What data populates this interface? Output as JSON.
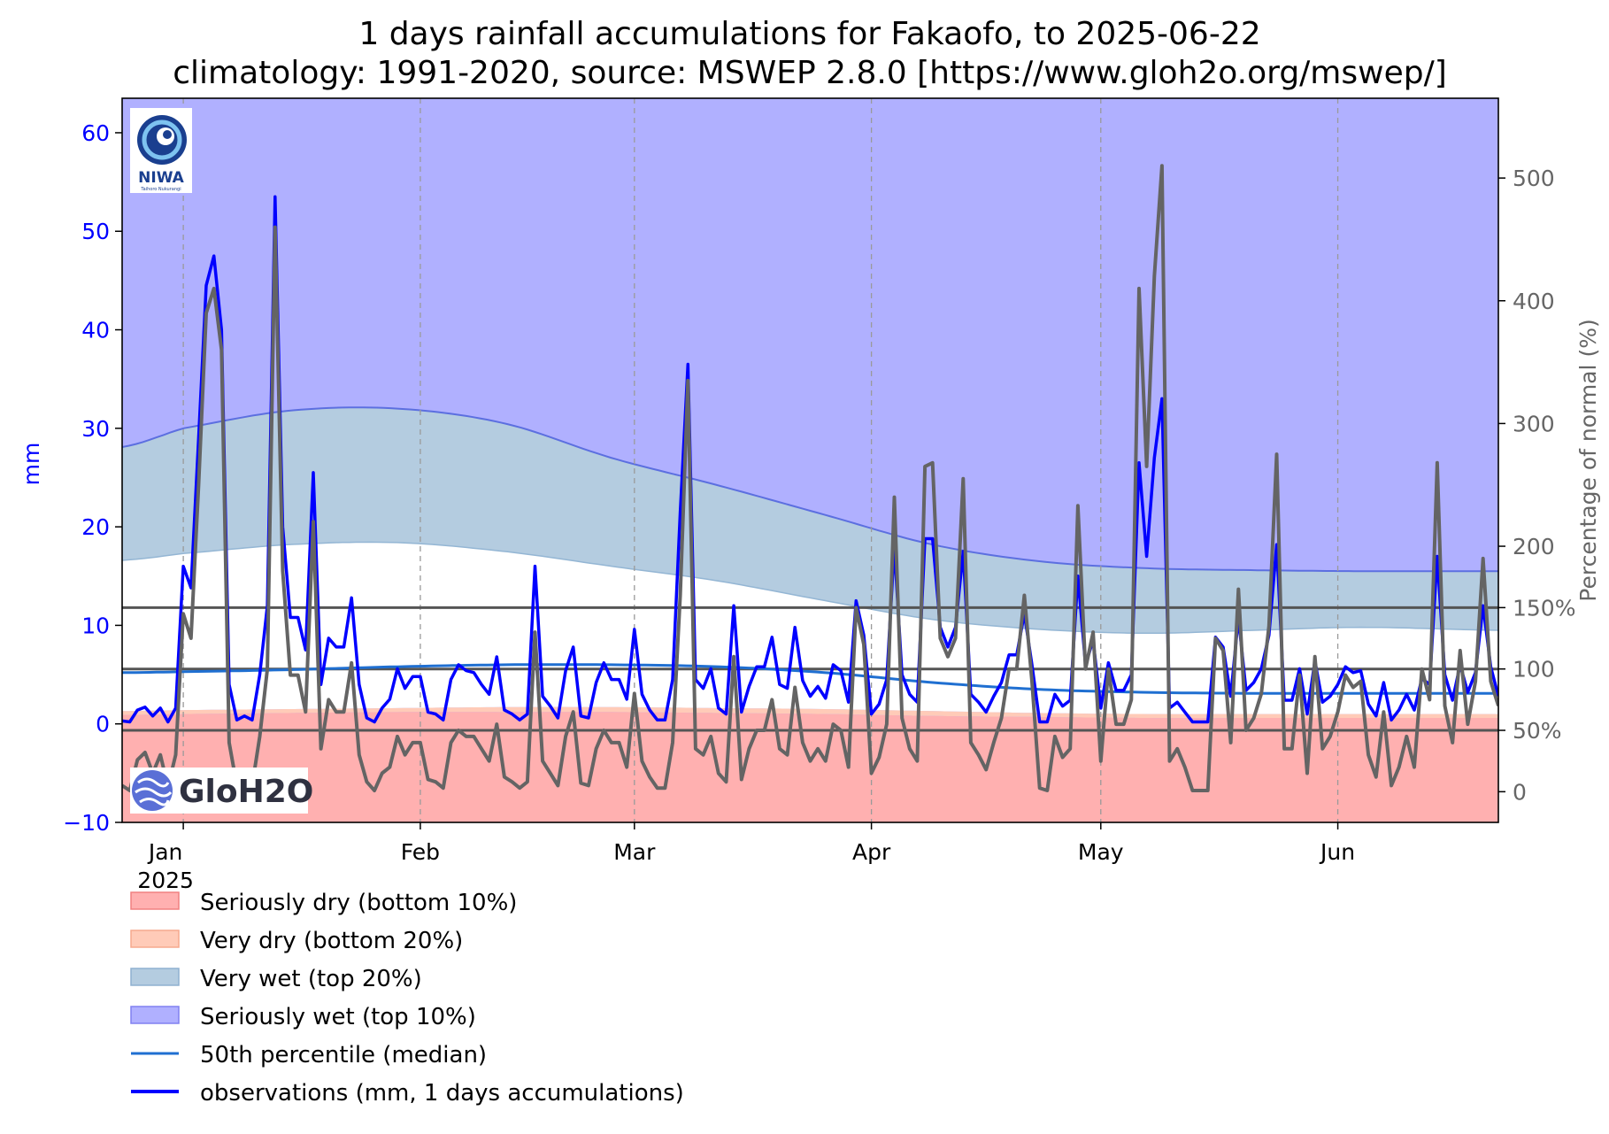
{
  "chart_data": {
    "type": "line",
    "title": "1 days rainfall accumulations for Fakaofo, to 2025-06-22",
    "subtitle": "climatology: 1991-2020, source: MSWEP 2.8.0 [https://www.gloh2o.org/mswep/]",
    "ylabel": "mm",
    "ylabel_right": "Percentage of normal (%)",
    "ylim": [
      -10,
      63.5
    ],
    "ylim_right": [
      -25,
      565
    ],
    "yticks": [
      -10,
      0,
      10,
      20,
      30,
      40,
      50,
      60
    ],
    "yticks_right": [
      0,
      100,
      200,
      300,
      400,
      500
    ],
    "yticks_right_labels": [
      "0",
      "100",
      "200",
      "300",
      "400",
      "500"
    ],
    "reference_lines_right": [
      {
        "value": 50,
        "label": "50%"
      },
      {
        "value": 100,
        "label": "100"
      },
      {
        "value": 150,
        "label": "150%"
      }
    ],
    "x_start": "2024-12-24",
    "x_end": "2025-06-22",
    "x_ticks": [
      {
        "date": "2025-01-01",
        "label": "Jan",
        "sublabel": "2025"
      },
      {
        "date": "2025-02-01",
        "label": "Feb",
        "sublabel": ""
      },
      {
        "date": "2025-03-01",
        "label": "Mar",
        "sublabel": ""
      },
      {
        "date": "2025-04-01",
        "label": "Apr",
        "sublabel": ""
      },
      {
        "date": "2025-05-01",
        "label": "May",
        "sublabel": ""
      },
      {
        "date": "2025-06-01",
        "label": "Jun",
        "sublabel": ""
      }
    ],
    "climatology": {
      "dates": [
        "2024-12-24",
        "2025-01-01",
        "2025-01-15",
        "2025-01-29",
        "2025-02-12",
        "2025-02-26",
        "2025-03-12",
        "2025-03-26",
        "2025-04-09",
        "2025-04-23",
        "2025-05-07",
        "2025-05-21",
        "2025-06-04",
        "2025-06-22"
      ],
      "p10": [
        0.9,
        1.0,
        1.1,
        1.2,
        1.2,
        1.2,
        1.1,
        1.0,
        0.8,
        0.7,
        0.6,
        0.6,
        0.6,
        0.6
      ],
      "p20": [
        1.3,
        1.4,
        1.5,
        1.6,
        1.7,
        1.7,
        1.6,
        1.5,
        1.3,
        1.1,
        1.0,
        1.0,
        1.0,
        1.0
      ],
      "p50": [
        5.2,
        5.3,
        5.5,
        5.8,
        6.0,
        6.0,
        5.8,
        5.2,
        4.2,
        3.5,
        3.2,
        3.1,
        3.1,
        3.1
      ],
      "p80": [
        16.6,
        17.3,
        18.2,
        18.4,
        17.5,
        16.0,
        14.5,
        12.5,
        10.6,
        9.6,
        9.2,
        9.5,
        9.8,
        9.5
      ],
      "p90": [
        28.1,
        30.0,
        31.8,
        32.0,
        30.5,
        27.0,
        24.2,
        21.2,
        18.2,
        16.5,
        15.8,
        15.6,
        15.5,
        15.5
      ]
    },
    "observations": {
      "name": "observations (mm, 1 days accumulations)",
      "dates": [
        "2024-12-24",
        "2024-12-25",
        "2024-12-26",
        "2024-12-27",
        "2024-12-28",
        "2024-12-29",
        "2024-12-30",
        "2024-12-31",
        "2025-01-01",
        "2025-01-02",
        "2025-01-03",
        "2025-01-04",
        "2025-01-05",
        "2025-01-06",
        "2025-01-07",
        "2025-01-08",
        "2025-01-09",
        "2025-01-10",
        "2025-01-11",
        "2025-01-12",
        "2025-01-13",
        "2025-01-14",
        "2025-01-15",
        "2025-01-16",
        "2025-01-17",
        "2025-01-18",
        "2025-01-19",
        "2025-01-20",
        "2025-01-21",
        "2025-01-22",
        "2025-01-23",
        "2025-01-24",
        "2025-01-25",
        "2025-01-26",
        "2025-01-27",
        "2025-01-28",
        "2025-01-29",
        "2025-01-30",
        "2025-01-31",
        "2025-02-01",
        "2025-02-02",
        "2025-02-03",
        "2025-02-04",
        "2025-02-05",
        "2025-02-06",
        "2025-02-07",
        "2025-02-08",
        "2025-02-09",
        "2025-02-10",
        "2025-02-11",
        "2025-02-12",
        "2025-02-13",
        "2025-02-14",
        "2025-02-15",
        "2025-02-16",
        "2025-02-17",
        "2025-02-18",
        "2025-02-19",
        "2025-02-20",
        "2025-02-21",
        "2025-02-22",
        "2025-02-23",
        "2025-02-24",
        "2025-02-25",
        "2025-02-26",
        "2025-02-27",
        "2025-02-28",
        "2025-03-01",
        "2025-03-02",
        "2025-03-03",
        "2025-03-04",
        "2025-03-05",
        "2025-03-06",
        "2025-03-07",
        "2025-03-08",
        "2025-03-09",
        "2025-03-10",
        "2025-03-11",
        "2025-03-12",
        "2025-03-13",
        "2025-03-14",
        "2025-03-15",
        "2025-03-16",
        "2025-03-17",
        "2025-03-18",
        "2025-03-19",
        "2025-03-20",
        "2025-03-21",
        "2025-03-22",
        "2025-03-23",
        "2025-03-24",
        "2025-03-25",
        "2025-03-26",
        "2025-03-27",
        "2025-03-28",
        "2025-03-29",
        "2025-03-30",
        "2025-03-31",
        "2025-04-01",
        "2025-04-02",
        "2025-04-03",
        "2025-04-04",
        "2025-04-05",
        "2025-04-06",
        "2025-04-07",
        "2025-04-08",
        "2025-04-09",
        "2025-04-10",
        "2025-04-11",
        "2025-04-12",
        "2025-04-13",
        "2025-04-14",
        "2025-04-15",
        "2025-04-16",
        "2025-04-17",
        "2025-04-18",
        "2025-04-19",
        "2025-04-20",
        "2025-04-21",
        "2025-04-22",
        "2025-04-23",
        "2025-04-24",
        "2025-04-25",
        "2025-04-26",
        "2025-04-27",
        "2025-04-28",
        "2025-04-29",
        "2025-04-30",
        "2025-05-01",
        "2025-05-02",
        "2025-05-03",
        "2025-05-04",
        "2025-05-05",
        "2025-05-06",
        "2025-05-07",
        "2025-05-08",
        "2025-05-09",
        "2025-05-10",
        "2025-05-11",
        "2025-05-12",
        "2025-05-13",
        "2025-05-14",
        "2025-05-15",
        "2025-05-16",
        "2025-05-17",
        "2025-05-18",
        "2025-05-19",
        "2025-05-20",
        "2025-05-21",
        "2025-05-22",
        "2025-05-23",
        "2025-05-24",
        "2025-05-25",
        "2025-05-26",
        "2025-05-27",
        "2025-05-28",
        "2025-05-29",
        "2025-05-30",
        "2025-05-31",
        "2025-06-01",
        "2025-06-02",
        "2025-06-03",
        "2025-06-04",
        "2025-06-05",
        "2025-06-06",
        "2025-06-07",
        "2025-06-08",
        "2025-06-09",
        "2025-06-10",
        "2025-06-11",
        "2025-06-12",
        "2025-06-13",
        "2025-06-14",
        "2025-06-15",
        "2025-06-16",
        "2025-06-17",
        "2025-06-18",
        "2025-06-19",
        "2025-06-20",
        "2025-06-21",
        "2025-06-22"
      ],
      "values": [
        0.3,
        0.2,
        1.4,
        1.7,
        0.8,
        1.6,
        0.2,
        1.6,
        16.0,
        13.8,
        29.0,
        44.5,
        47.5,
        40.0,
        4.0,
        0.4,
        0.8,
        0.4,
        5.0,
        12.0,
        53.5,
        20.0,
        10.8,
        10.8,
        7.5,
        25.5,
        4.0,
        8.7,
        7.8,
        7.8,
        12.8,
        4.0,
        0.6,
        0.2,
        1.6,
        2.5,
        5.6,
        3.6,
        4.8,
        4.8,
        1.2,
        1.0,
        0.4,
        4.5,
        6.0,
        5.4,
        5.2,
        4.0,
        3.0,
        6.8,
        1.4,
        1.0,
        0.4,
        1.0,
        16.0,
        2.8,
        1.8,
        0.6,
        5.4,
        7.8,
        0.8,
        0.6,
        4.2,
        6.2,
        4.5,
        4.5,
        2.5,
        9.6,
        3.0,
        1.4,
        0.4,
        0.4,
        4.5,
        21.5,
        36.5,
        4.5,
        3.6,
        5.6,
        1.6,
        1.0,
        12.0,
        1.2,
        3.8,
        5.8,
        5.8,
        8.8,
        4.0,
        3.6,
        9.8,
        4.4,
        2.8,
        3.8,
        2.6,
        6.0,
        5.4,
        2.2,
        12.5,
        9.0,
        1.0,
        2.0,
        4.5,
        18.0,
        5.0,
        3.0,
        2.2,
        18.8,
        18.8,
        9.8,
        7.8,
        9.8,
        17.5,
        3.0,
        2.2,
        1.2,
        2.8,
        4.2,
        7.0,
        7.0,
        11.2,
        6.0,
        0.2,
        0.2,
        3.0,
        1.8,
        2.4,
        15.0,
        6.0,
        8.5,
        1.6,
        6.2,
        3.4,
        3.4,
        5.0,
        26.5,
        17.0,
        27.0,
        33.0,
        1.6,
        2.2,
        1.2,
        0.2,
        0.2,
        0.2,
        8.8,
        7.8,
        2.8,
        10.8,
        3.4,
        4.2,
        5.6,
        9.0,
        18.2,
        2.4,
        2.4,
        5.6,
        1.0,
        6.4,
        2.2,
        2.8,
        4.0,
        5.8,
        5.2,
        5.4,
        2.0,
        0.8,
        4.2,
        0.4,
        1.4,
        3.0,
        1.4,
        4.6,
        4.0,
        17.0,
        5.0,
        2.4,
        6.0,
        3.2,
        5.2,
        12.0,
        5.8,
        2.8
      ]
    },
    "percent_of_normal": {
      "name": "percentage of normal",
      "values": [
        5,
        1,
        26,
        32,
        15,
        30,
        4,
        30,
        145,
        125,
        250,
        390,
        410,
        360,
        40,
        5,
        8,
        5,
        45,
        100,
        460,
        180,
        95,
        95,
        65,
        220,
        35,
        75,
        65,
        65,
        105,
        30,
        8,
        1,
        15,
        20,
        45,
        30,
        40,
        40,
        10,
        8,
        3,
        40,
        50,
        45,
        45,
        35,
        25,
        55,
        12,
        8,
        3,
        8,
        130,
        25,
        15,
        5,
        45,
        65,
        7,
        5,
        35,
        50,
        40,
        40,
        20,
        80,
        25,
        12,
        3,
        3,
        40,
        160,
        335,
        35,
        30,
        45,
        15,
        8,
        110,
        10,
        35,
        50,
        50,
        75,
        35,
        30,
        85,
        40,
        25,
        35,
        25,
        55,
        50,
        20,
        150,
        120,
        15,
        28,
        55,
        240,
        60,
        35,
        25,
        265,
        268,
        125,
        110,
        125,
        255,
        40,
        30,
        18,
        40,
        60,
        100,
        100,
        160,
        90,
        3,
        1,
        45,
        28,
        35,
        233,
        100,
        130,
        25,
        100,
        55,
        55,
        75,
        410,
        265,
        420,
        510,
        25,
        35,
        20,
        1,
        1,
        1,
        125,
        115,
        40,
        165,
        50,
        60,
        80,
        135,
        275,
        35,
        35,
        95,
        15,
        110,
        35,
        45,
        65,
        95,
        85,
        90,
        30,
        12,
        65,
        5,
        20,
        45,
        20,
        100,
        75,
        268,
        70,
        40,
        115,
        55,
        90,
        190,
        90,
        70
      ]
    },
    "legend": [
      {
        "label": "Seriously dry (bottom 10%)",
        "color": "#ffb0b0",
        "kind": "patch"
      },
      {
        "label": "Very dry (bottom 20%)",
        "color": "#ffcbb8",
        "kind": "patch"
      },
      {
        "label": "Very wet (top 20%)",
        "color": "#b4cce0",
        "kind": "patch"
      },
      {
        "label": "Seriously wet (top 10%)",
        "color": "#b0b0ff",
        "kind": "patch"
      },
      {
        "label": "50th percentile (median)",
        "color": "#1f6fd1",
        "kind": "line"
      },
      {
        "label": "observations (mm, 1 days accumulations)",
        "color": "#0000ff",
        "kind": "line"
      }
    ],
    "legend_placement": "below",
    "grid": "vertical dashed at month ticks",
    "colors": {
      "seriously_wet": "#b0b0ff",
      "very_wet": "#b4cce0",
      "normal": "#ffffff",
      "very_dry": "#ffcbb8",
      "seriously_dry": "#ffb0b0",
      "median": "#1f6fd1",
      "p90_line": "#5c6fe0",
      "observations": "#0000ff",
      "percent": "#646464",
      "reflines": "#555555"
    }
  },
  "logos": {
    "niwa": {
      "text": "NIWA",
      "subtext": "Taihoro Nukurangi"
    },
    "gloh2o": {
      "text": "GloH2O"
    }
  }
}
